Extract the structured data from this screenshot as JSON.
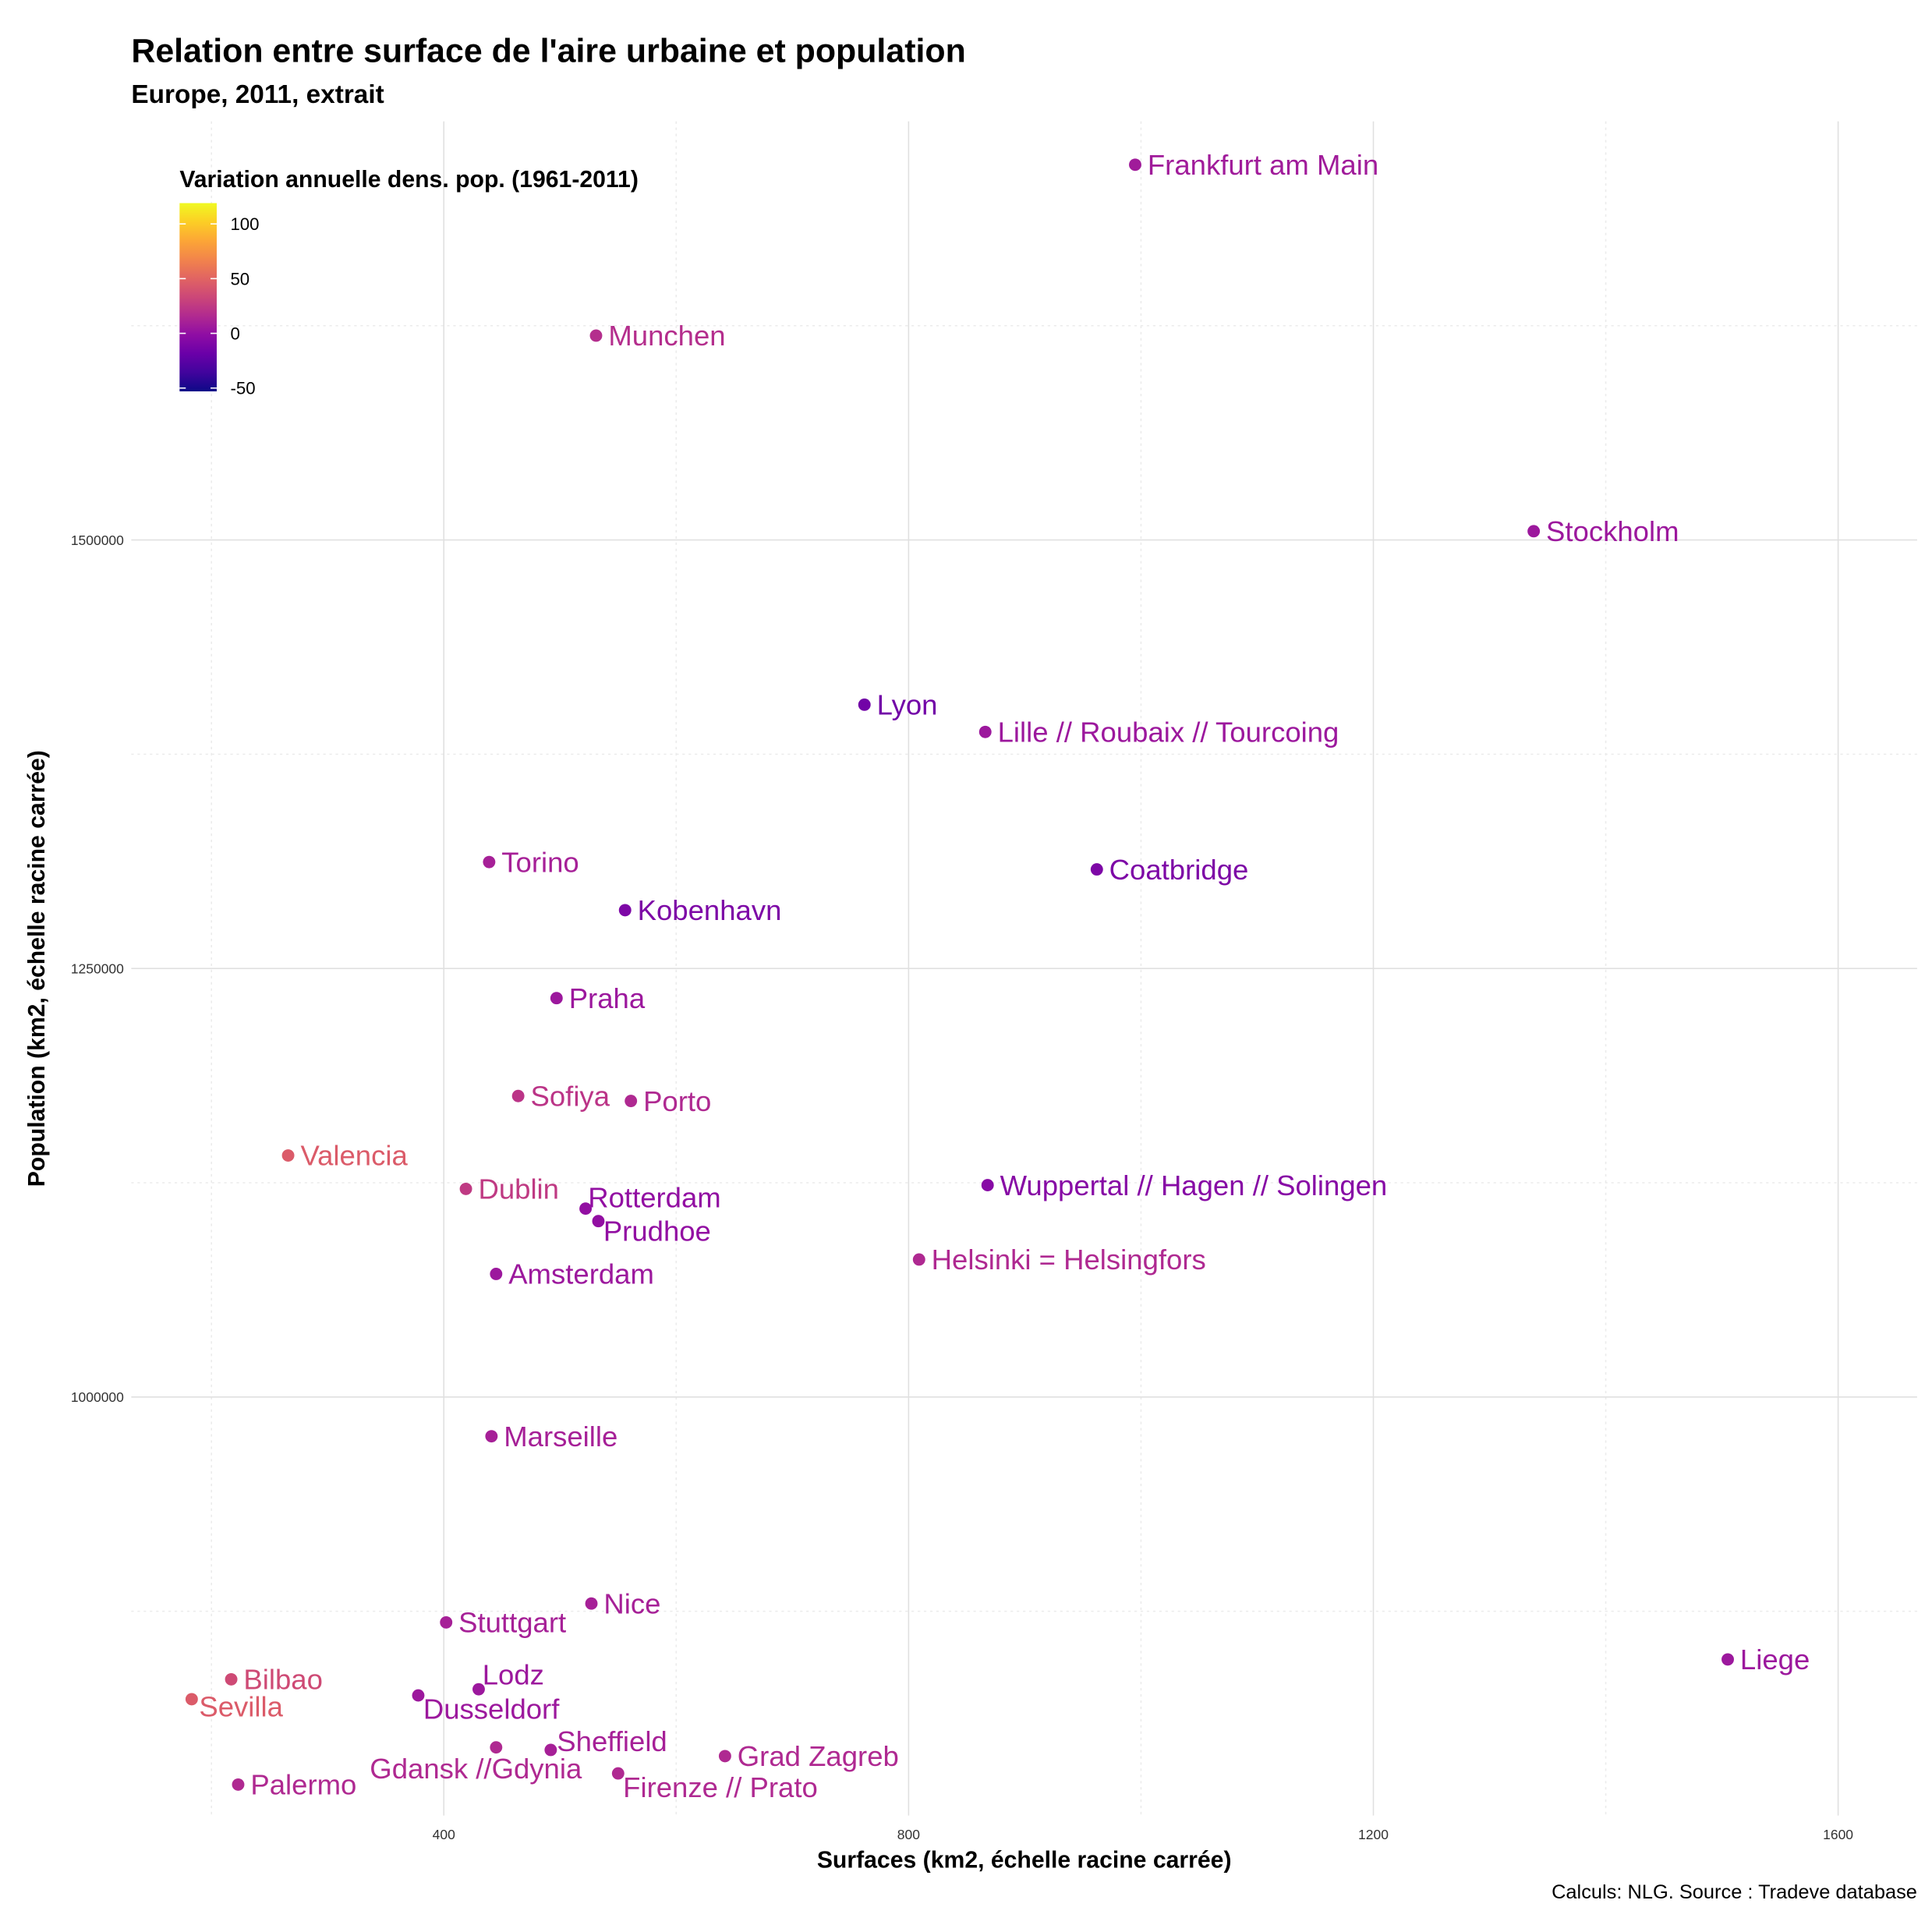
{
  "chart_data": {
    "type": "scatter",
    "title": "Relation entre surface de l'aire urbaine et population",
    "subtitle": "Europe, 2011, extrait",
    "xlabel": "Surfaces (km2, échelle racine carrée)",
    "ylabel": "Population (km2, échelle racine carrée)",
    "caption": "Calculs: NLG. Source : Tradeve database",
    "xlim": [
      131,
      1668
    ],
    "ylim": [
      755800,
      1744200
    ],
    "xticks": [
      400,
      800,
      1200,
      1600
    ],
    "xticks_minor": [
      200,
      600,
      1000,
      1400
    ],
    "yticks": [
      1000000,
      1250000,
      1500000
    ],
    "yticks_minor": [
      875000,
      1125000,
      1375000,
      1625000
    ],
    "grid": true,
    "legend": {
      "title": "Variation annuelle dens. pop. (1961-2011)",
      "ticks": [
        100,
        50,
        0,
        -50
      ],
      "range": [
        -53,
        119
      ],
      "palette": "plasma",
      "placement": "top-left"
    },
    "points": [
      {
        "name": "Frankfurt am Main",
        "x": 995,
        "y": 1718900,
        "color_value": 7
      },
      {
        "name": "Munchen",
        "x": 531,
        "y": 1619200,
        "color_value": 18
      },
      {
        "name": "Stockholm",
        "x": 1338,
        "y": 1505100,
        "color_value": 5
      },
      {
        "name": "Lyon",
        "x": 762,
        "y": 1403900,
        "color_value": -15
      },
      {
        "name": "Lille // Roubaix // Tourcoing",
        "x": 866,
        "y": 1388000,
        "color_value": 5
      },
      {
        "name": "Coatbridge",
        "x": 962,
        "y": 1307800,
        "color_value": -10
      },
      {
        "name": "Torino",
        "x": 439,
        "y": 1312100,
        "color_value": 10
      },
      {
        "name": "Kobenhavn",
        "x": 556,
        "y": 1284000,
        "color_value": -10
      },
      {
        "name": "Praha",
        "x": 497,
        "y": 1232700,
        "color_value": 5
      },
      {
        "name": "Sofiya",
        "x": 464,
        "y": 1175600,
        "color_value": 22
      },
      {
        "name": "Porto",
        "x": 561,
        "y": 1172700,
        "color_value": 15
      },
      {
        "name": "Valencia",
        "x": 266,
        "y": 1140900,
        "color_value": 45
      },
      {
        "name": "Dublin",
        "x": 419,
        "y": 1121400,
        "color_value": 25
      },
      {
        "name": "Rotterdam",
        "x": 522,
        "y": 1109900,
        "color_value": 0
      },
      {
        "name": "Prudhoe",
        "x": 533,
        "y": 1102600,
        "color_value": 0
      },
      {
        "name": "Wuppertal // Hagen // Solingen",
        "x": 868,
        "y": 1123600,
        "color_value": -5
      },
      {
        "name": "Helsinki = Helsingfors",
        "x": 809,
        "y": 1080200,
        "color_value": 15
      },
      {
        "name": "Amsterdam",
        "x": 445,
        "y": 1071800,
        "color_value": 5
      },
      {
        "name": "Marseille",
        "x": 441,
        "y": 977100,
        "color_value": 10
      },
      {
        "name": "Nice",
        "x": 527,
        "y": 879500,
        "color_value": 10
      },
      {
        "name": "Stuttgart",
        "x": 402,
        "y": 868500,
        "color_value": 10
      },
      {
        "name": "Liege",
        "x": 1505,
        "y": 846900,
        "color_value": 5
      },
      {
        "name": "Bilbao",
        "x": 217,
        "y": 835300,
        "color_value": 35
      },
      {
        "name": "Sevilla",
        "x": 183,
        "y": 823700,
        "color_value": 45
      },
      {
        "name": "Lodz",
        "x": 430,
        "y": 829500,
        "color_value": 5
      },
      {
        "name": "Dusseldorf",
        "x": 378,
        "y": 825900,
        "color_value": 5
      },
      {
        "name": "Gdansk //Gdynia",
        "x": 445,
        "y": 795600,
        "color_value": 15
      },
      {
        "name": "Sheffield",
        "x": 492,
        "y": 794100,
        "color_value": 10
      },
      {
        "name": "Grad Zagreb",
        "x": 642,
        "y": 790500,
        "color_value": 15
      },
      {
        "name": "Firenze // Prato",
        "x": 550,
        "y": 780400,
        "color_value": 15
      },
      {
        "name": "Palermo",
        "x": 223,
        "y": 773900,
        "color_value": 15
      }
    ]
  }
}
